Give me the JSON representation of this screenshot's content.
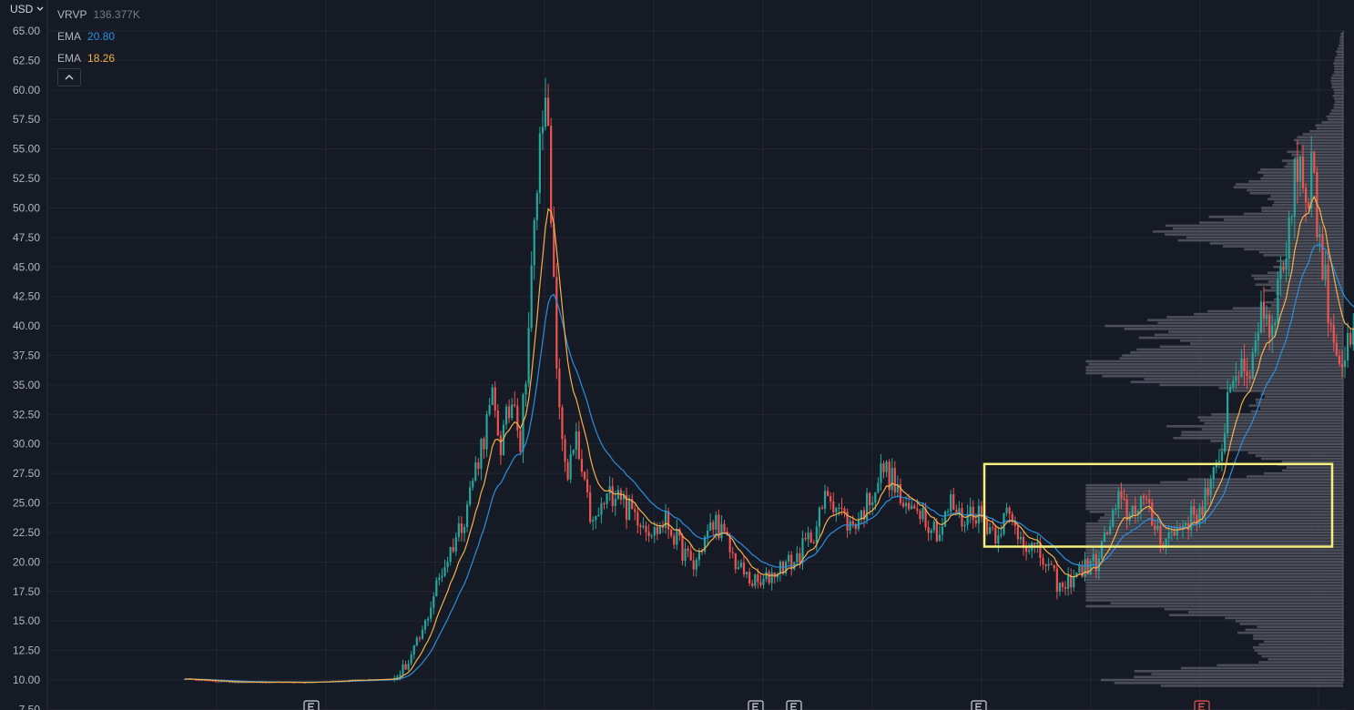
{
  "header": {
    "currency": "USD"
  },
  "legend": {
    "vrvp": {
      "name": "VRVP",
      "value": "136.377K"
    },
    "ema1": {
      "name": "EMA",
      "value": "20.80"
    },
    "ema2": {
      "name": "EMA",
      "value": "18.26"
    }
  },
  "colors": {
    "background": "#161a25",
    "grid": "#232632",
    "up": "#26a69a",
    "down": "#ef5350",
    "ema_fast": "#f6b04a",
    "ema_slow": "#2a8fe0",
    "volume_profile": "#5d606b",
    "highlight_box": "#f5f07a",
    "earnings_marker": "#d1d4dc",
    "earnings_marker_active": "#ef5350"
  },
  "icons": {
    "collapse": "chevron-up-icon",
    "currency_dropdown": "chevron-down-icon",
    "earnings": "earnings-E-icon"
  },
  "chart_data": {
    "type": "candlestick",
    "y_axis": {
      "ylim": [
        7.5,
        65
      ],
      "ticks": [
        "7.50",
        "10.00",
        "12.50",
        "15.00",
        "17.50",
        "20.00",
        "22.50",
        "25.00",
        "27.50",
        "30.00",
        "32.50",
        "35.00",
        "37.50",
        "40.00",
        "42.50",
        "45.00",
        "47.50",
        "50.00",
        "52.50",
        "55.00",
        "57.50",
        "60.00",
        "62.50",
        "65.00"
      ]
    },
    "price_path": [
      [
        0,
        10.1
      ],
      [
        10,
        9.9
      ],
      [
        20,
        9.8
      ],
      [
        45,
        9.8
      ],
      [
        60,
        10.0
      ],
      [
        75,
        10.1
      ],
      [
        80,
        11.5
      ],
      [
        85,
        14.0
      ],
      [
        90,
        18.0
      ],
      [
        95,
        21.0
      ],
      [
        100,
        24.0
      ],
      [
        105,
        29.0
      ],
      [
        110,
        33.5
      ],
      [
        113,
        30.0
      ],
      [
        118,
        34.5
      ],
      [
        120,
        30.0
      ],
      [
        123,
        40.0
      ],
      [
        126,
        52.0
      ],
      [
        129,
        62.0
      ],
      [
        131,
        48.0
      ],
      [
        134,
        32.0
      ],
      [
        137,
        27.5
      ],
      [
        140,
        30.0
      ],
      [
        143,
        26.0
      ],
      [
        146,
        23.0
      ],
      [
        150,
        25.0
      ],
      [
        155,
        26.5
      ],
      [
        158,
        24.5
      ],
      [
        162,
        24.0
      ],
      [
        168,
        22.5
      ],
      [
        172,
        23.5
      ],
      [
        178,
        21.0
      ],
      [
        182,
        19.5
      ],
      [
        186,
        22.0
      ],
      [
        190,
        23.5
      ],
      [
        194,
        21.5
      ],
      [
        198,
        19.5
      ],
      [
        202,
        18.5
      ],
      [
        206,
        18.0
      ],
      [
        210,
        19.0
      ],
      [
        214,
        19.8
      ],
      [
        218,
        20.0
      ],
      [
        222,
        21.5
      ],
      [
        226,
        23.0
      ],
      [
        230,
        26.0
      ],
      [
        234,
        24.5
      ],
      [
        238,
        23.0
      ],
      [
        242,
        24.0
      ],
      [
        246,
        26.0
      ],
      [
        250,
        28.0
      ],
      [
        254,
        26.5
      ],
      [
        258,
        24.0
      ],
      [
        262,
        25.0
      ],
      [
        266,
        23.5
      ],
      [
        270,
        22.5
      ],
      [
        274,
        25.0
      ],
      [
        278,
        23.5
      ],
      [
        282,
        24.5
      ],
      [
        286,
        23.5
      ],
      [
        290,
        22.5
      ],
      [
        294,
        24.0
      ],
      [
        298,
        22.5
      ],
      [
        302,
        21.5
      ],
      [
        306,
        20.5
      ],
      [
        310,
        19.0
      ],
      [
        314,
        17.5
      ],
      [
        318,
        19.0
      ],
      [
        322,
        19.5
      ],
      [
        326,
        20.0
      ],
      [
        330,
        22.5
      ],
      [
        334,
        25.0
      ],
      [
        338,
        24.0
      ],
      [
        342,
        25.5
      ],
      [
        346,
        23.5
      ],
      [
        350,
        22.0
      ],
      [
        354,
        22.5
      ],
      [
        358,
        23.5
      ],
      [
        362,
        24.0
      ],
      [
        366,
        26.0
      ],
      [
        370,
        28.0
      ],
      [
        373,
        34.0
      ],
      [
        376,
        37.0
      ],
      [
        379,
        35.0
      ],
      [
        382,
        37.5
      ],
      [
        385,
        42.0
      ],
      [
        388,
        40.0
      ],
      [
        391,
        43.0
      ],
      [
        394,
        47.0
      ],
      [
        397,
        52.0
      ],
      [
        399,
        55.0
      ],
      [
        401,
        50.0
      ],
      [
        403,
        54.5
      ],
      [
        405,
        49.0
      ],
      [
        407,
        45.0
      ],
      [
        409,
        42.0
      ],
      [
        411,
        39.0
      ],
      [
        414,
        37.0
      ],
      [
        418,
        38.5
      ],
      [
        422,
        37.0
      ],
      [
        426,
        36.5
      ],
      [
        430,
        38.0
      ],
      [
        433,
        40.5
      ],
      [
        436,
        41.5
      ],
      [
        439,
        44.5
      ]
    ],
    "ema_fast": {
      "label": "EMA",
      "value": 18.26
    },
    "ema_slow": {
      "label": "EMA",
      "value": 20.8
    },
    "volume_profile": {
      "label": "VRVP",
      "value": "136.377K",
      "placement": "right"
    },
    "highlight_box": {
      "price_range": [
        21.3,
        28.3
      ]
    },
    "grid": true
  }
}
